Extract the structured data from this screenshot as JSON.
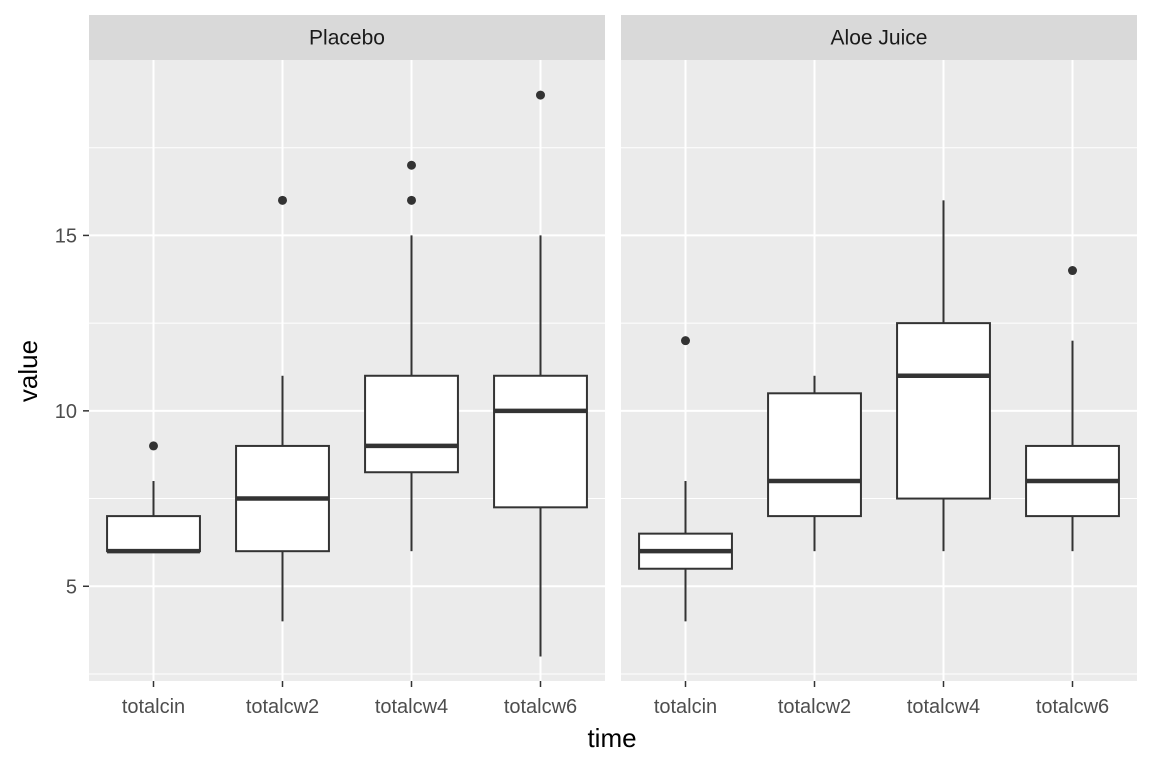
{
  "chart_data": {
    "type": "boxplot",
    "xlabel": "time",
    "ylabel": "value",
    "ylim": [
      2.3,
      20.0
    ],
    "yticks": [
      5,
      10,
      15
    ],
    "grid": true,
    "categories": [
      "totalcin",
      "totalcw2",
      "totalcw4",
      "totalcw6"
    ],
    "panels": [
      {
        "name": "Placebo",
        "boxes": [
          {
            "category": "totalcin",
            "min": 6,
            "q1": 6,
            "median": 6,
            "q3": 7,
            "max": 8,
            "outliers": [
              9
            ]
          },
          {
            "category": "totalcw2",
            "min": 4,
            "q1": 6,
            "median": 7.5,
            "q3": 9,
            "max": 11,
            "outliers": [
              16
            ]
          },
          {
            "category": "totalcw4",
            "min": 6,
            "q1": 8.25,
            "median": 9,
            "q3": 11,
            "max": 15,
            "outliers": [
              16,
              17
            ]
          },
          {
            "category": "totalcw6",
            "min": 3,
            "q1": 7.25,
            "median": 10,
            "q3": 11,
            "max": 15,
            "outliers": [
              19
            ]
          }
        ]
      },
      {
        "name": "Aloe Juice",
        "boxes": [
          {
            "category": "totalcin",
            "min": 4,
            "q1": 5.5,
            "median": 6,
            "q3": 6.5,
            "max": 8,
            "outliers": [
              12
            ]
          },
          {
            "category": "totalcw2",
            "min": 6,
            "q1": 7,
            "median": 8,
            "q3": 10.5,
            "max": 11,
            "outliers": []
          },
          {
            "category": "totalcw4",
            "min": 6,
            "q1": 7.5,
            "median": 11,
            "q3": 12.5,
            "max": 16,
            "outliers": []
          },
          {
            "category": "totalcw6",
            "min": 6,
            "q1": 7,
            "median": 8,
            "q3": 9,
            "max": 12,
            "outliers": [
              14
            ]
          }
        ]
      }
    ],
    "colors": {
      "panel_background": "#ebebeb",
      "strip_background": "#d9d9d9",
      "grid": "#ffffff",
      "box_fill": "#ffffff",
      "box_line": "#333333",
      "tick_text": "#4d4d4d"
    }
  }
}
